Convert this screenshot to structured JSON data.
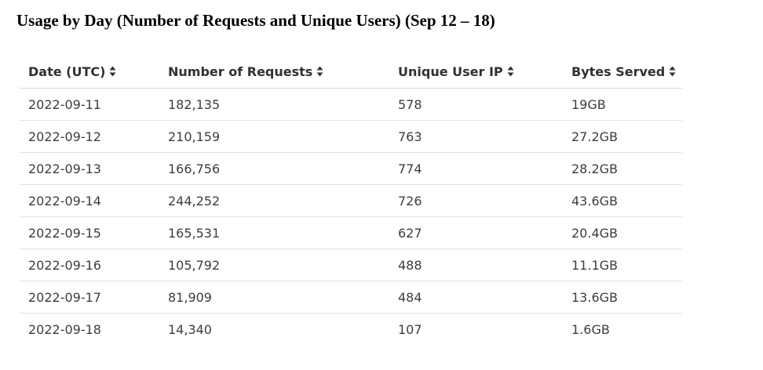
{
  "title": "Usage by Day (Number of Requests and Unique Users) (Sep 12 – 18)",
  "table": {
    "columns": [
      {
        "label": "Date (UTC)",
        "icon": "sort-icon"
      },
      {
        "label": "Number of Requests",
        "icon": "sort-icon"
      },
      {
        "label": "Unique User IP",
        "icon": "sort-icon"
      },
      {
        "label": "Bytes Served",
        "icon": "sort-icon"
      }
    ],
    "rows": [
      [
        "2022-09-11",
        "182,135",
        "578",
        "19GB"
      ],
      [
        "2022-09-12",
        "210,159",
        "763",
        "27.2GB"
      ],
      [
        "2022-09-13",
        "166,756",
        "774",
        "28.2GB"
      ],
      [
        "2022-09-14",
        "244,252",
        "726",
        "43.6GB"
      ],
      [
        "2022-09-15",
        "165,531",
        "627",
        "20.4GB"
      ],
      [
        "2022-09-16",
        "105,792",
        "488",
        "11.1GB"
      ],
      [
        "2022-09-17",
        "81,909",
        "484",
        "13.6GB"
      ],
      [
        "2022-09-18",
        "14,340",
        "107",
        "1.6GB"
      ]
    ]
  }
}
